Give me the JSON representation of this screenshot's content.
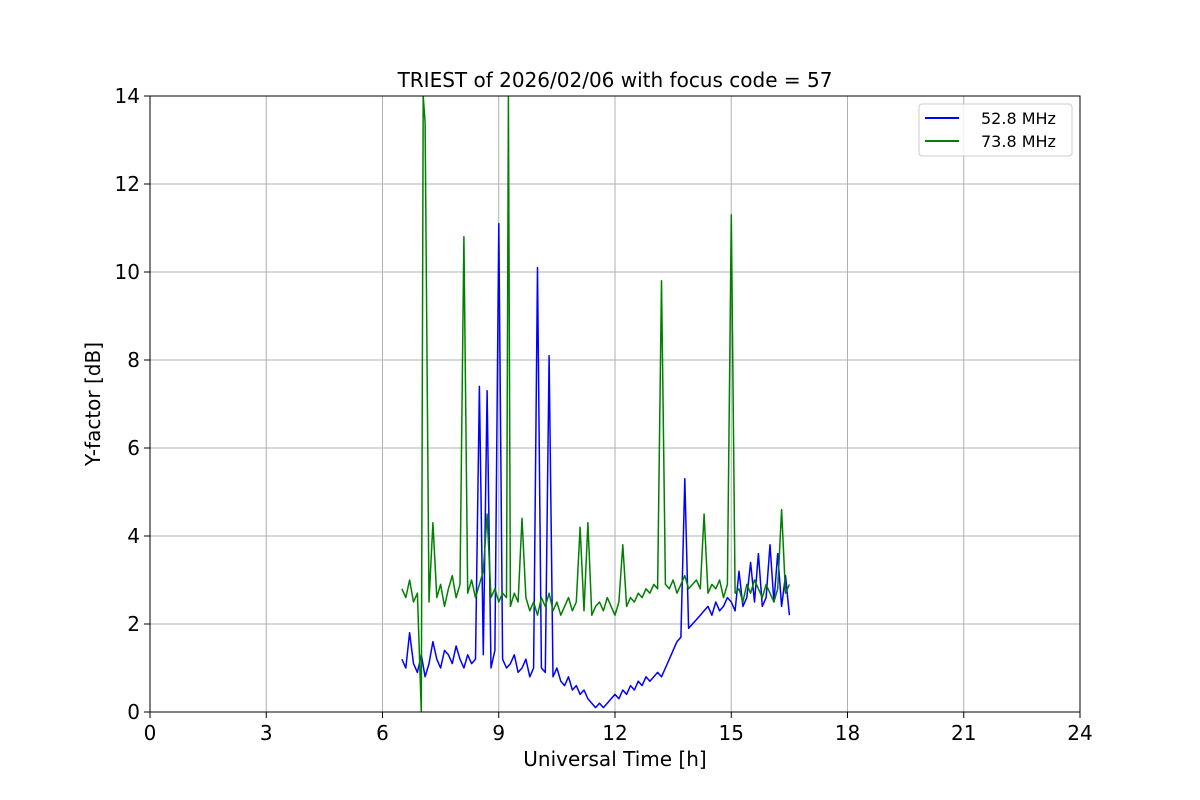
{
  "chart_data": {
    "type": "line",
    "title": "TRIEST of 2026/02/06 with focus code = 57",
    "xlabel": "Universal Time [h]",
    "ylabel": "Y-factor [dB]",
    "xlim": [
      0,
      24
    ],
    "ylim": [
      0,
      14
    ],
    "xticks": [
      0,
      3,
      6,
      9,
      12,
      15,
      18,
      21,
      24
    ],
    "yticks": [
      0,
      2,
      4,
      6,
      8,
      10,
      12,
      14
    ],
    "grid": true,
    "legend": "top-right",
    "series": [
      {
        "name": "52.8 MHz",
        "color": "#0000ff",
        "x": [
          6.5,
          6.6,
          6.7,
          6.8,
          6.9,
          7.0,
          7.1,
          7.2,
          7.3,
          7.4,
          7.5,
          7.6,
          7.7,
          7.8,
          7.9,
          8.0,
          8.1,
          8.2,
          8.3,
          8.4,
          8.5,
          8.6,
          8.7,
          8.8,
          8.9,
          9.0,
          9.1,
          9.2,
          9.3,
          9.4,
          9.5,
          9.6,
          9.7,
          9.8,
          9.9,
          10.0,
          10.1,
          10.2,
          10.3,
          10.4,
          10.5,
          10.6,
          10.7,
          10.8,
          10.9,
          11.0,
          11.1,
          11.2,
          11.3,
          11.4,
          11.5,
          11.6,
          11.7,
          11.8,
          11.9,
          12.0,
          12.1,
          12.2,
          12.3,
          12.4,
          12.5,
          12.6,
          12.7,
          12.8,
          12.9,
          13.0,
          13.1,
          13.2,
          13.3,
          13.4,
          13.5,
          13.6,
          13.7,
          13.8,
          13.9,
          14.0,
          14.1,
          14.2,
          14.3,
          14.4,
          14.5,
          14.6,
          14.7,
          14.8,
          14.9,
          15.0,
          15.1,
          15.2,
          15.3,
          15.4,
          15.5,
          15.6,
          15.7,
          15.8,
          15.9,
          16.0,
          16.1,
          16.2,
          16.3,
          16.4,
          16.5
        ],
        "y": [
          1.2,
          1.0,
          1.8,
          1.1,
          0.9,
          1.3,
          0.8,
          1.1,
          1.6,
          1.2,
          1.0,
          1.4,
          1.3,
          1.1,
          1.5,
          1.2,
          1.0,
          1.3,
          1.1,
          1.2,
          7.4,
          1.3,
          7.3,
          1.0,
          1.4,
          11.1,
          1.2,
          1.0,
          1.1,
          1.3,
          0.9,
          1.0,
          1.2,
          0.8,
          1.0,
          10.1,
          1.0,
          0.9,
          8.1,
          0.8,
          1.0,
          0.7,
          0.6,
          0.8,
          0.5,
          0.6,
          0.4,
          0.5,
          0.3,
          0.2,
          0.1,
          0.2,
          0.1,
          0.2,
          0.3,
          0.4,
          0.3,
          0.5,
          0.4,
          0.6,
          0.5,
          0.7,
          0.6,
          0.8,
          0.7,
          0.8,
          0.9,
          0.8,
          1.0,
          1.2,
          1.4,
          1.6,
          1.7,
          5.3,
          1.9,
          2.0,
          2.1,
          2.2,
          2.3,
          2.4,
          2.2,
          2.5,
          2.3,
          2.4,
          2.6,
          2.5,
          2.3,
          3.2,
          2.4,
          2.6,
          3.4,
          2.5,
          3.6,
          2.4,
          2.6,
          3.8,
          2.5,
          3.6,
          2.4,
          3.1,
          2.2
        ]
      },
      {
        "name": "73.8 MHz",
        "color": "#008000",
        "x": [
          6.5,
          6.6,
          6.7,
          6.8,
          6.9,
          7.0,
          7.05,
          7.1,
          7.2,
          7.3,
          7.4,
          7.5,
          7.6,
          7.7,
          7.8,
          7.9,
          8.0,
          8.1,
          8.2,
          8.3,
          8.4,
          8.5,
          8.6,
          8.7,
          8.8,
          8.9,
          9.0,
          9.1,
          9.2,
          9.25,
          9.3,
          9.4,
          9.5,
          9.6,
          9.7,
          9.8,
          9.9,
          10.0,
          10.1,
          10.2,
          10.3,
          10.4,
          10.5,
          10.6,
          10.7,
          10.8,
          10.9,
          11.0,
          11.1,
          11.2,
          11.3,
          11.4,
          11.5,
          11.6,
          11.7,
          11.8,
          11.9,
          12.0,
          12.1,
          12.2,
          12.3,
          12.4,
          12.5,
          12.6,
          12.7,
          12.8,
          12.9,
          13.0,
          13.1,
          13.2,
          13.3,
          13.4,
          13.5,
          13.6,
          13.7,
          13.8,
          13.9,
          14.0,
          14.1,
          14.2,
          14.3,
          14.4,
          14.5,
          14.6,
          14.7,
          14.8,
          14.9,
          15.0,
          15.1,
          15.2,
          15.3,
          15.4,
          15.5,
          15.6,
          15.7,
          15.8,
          15.9,
          16.0,
          16.1,
          16.2,
          16.3,
          16.4,
          16.5
        ],
        "y": [
          2.8,
          2.6,
          3.0,
          2.5,
          2.7,
          0.0,
          14.0,
          13.4,
          2.5,
          4.3,
          2.6,
          2.9,
          2.4,
          2.8,
          3.1,
          2.6,
          2.9,
          10.8,
          2.7,
          3.0,
          2.6,
          2.9,
          3.2,
          4.5,
          2.6,
          2.8,
          2.5,
          2.7,
          2.6,
          14.0,
          2.4,
          2.7,
          2.5,
          4.4,
          2.6,
          2.3,
          2.5,
          2.2,
          2.6,
          2.4,
          2.7,
          2.3,
          2.5,
          2.2,
          2.4,
          2.6,
          2.3,
          2.5,
          4.2,
          2.3,
          4.3,
          2.2,
          2.4,
          2.5,
          2.3,
          2.6,
          2.4,
          2.2,
          2.5,
          3.8,
          2.4,
          2.6,
          2.5,
          2.7,
          2.6,
          2.8,
          2.7,
          2.9,
          2.8,
          9.8,
          2.9,
          2.8,
          3.0,
          2.7,
          2.9,
          3.1,
          2.8,
          2.9,
          3.0,
          2.8,
          4.5,
          2.7,
          2.9,
          2.8,
          3.0,
          2.6,
          2.9,
          11.3,
          2.7,
          2.8,
          2.5,
          2.9,
          2.7,
          3.0,
          2.8,
          2.6,
          2.9,
          2.7,
          2.5,
          2.8,
          4.6,
          2.7,
          2.9
        ]
      }
    ]
  }
}
